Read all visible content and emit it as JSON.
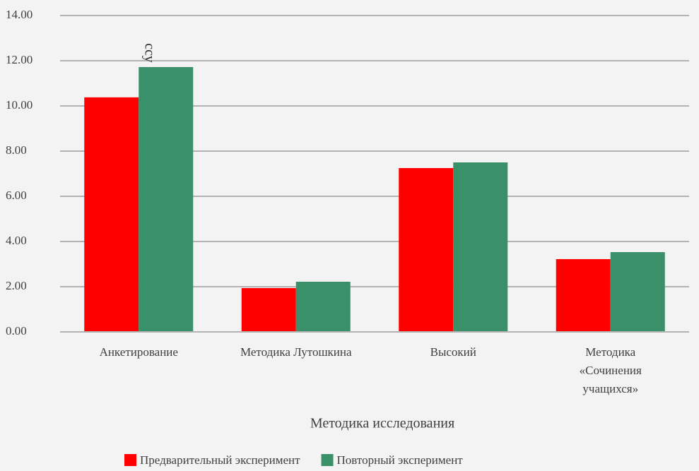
{
  "chart_data": {
    "type": "bar",
    "y_label": "ссу",
    "x_label": "Методика исследования",
    "categories": [
      "Анкетирование",
      "Методика Лутошкина",
      "Высокий",
      "Методика «Сочинения учащихся»"
    ],
    "series": [
      {
        "name": "Предварительный эксперимент",
        "color": "#ff0000",
        "values": [
          10.38,
          1.94,
          7.25,
          3.22
        ]
      },
      {
        "name": "Повторный эксперимент",
        "color": "#3a9068",
        "values": [
          11.72,
          2.22,
          7.5,
          3.53
        ]
      }
    ],
    "ylim": [
      0,
      14
    ],
    "yticks": [
      {
        "value": 0,
        "label": "0.00"
      },
      {
        "value": 2,
        "label": "2.00"
      },
      {
        "value": 4,
        "label": "4.00"
      },
      {
        "value": 6,
        "label": "6.00"
      },
      {
        "value": 8,
        "label": "8.00"
      },
      {
        "value": 10,
        "label": "10.00"
      },
      {
        "value": 12,
        "label": "12.00"
      },
      {
        "value": 14,
        "label": "14.00"
      }
    ],
    "grid": true,
    "legend": "bottom"
  }
}
